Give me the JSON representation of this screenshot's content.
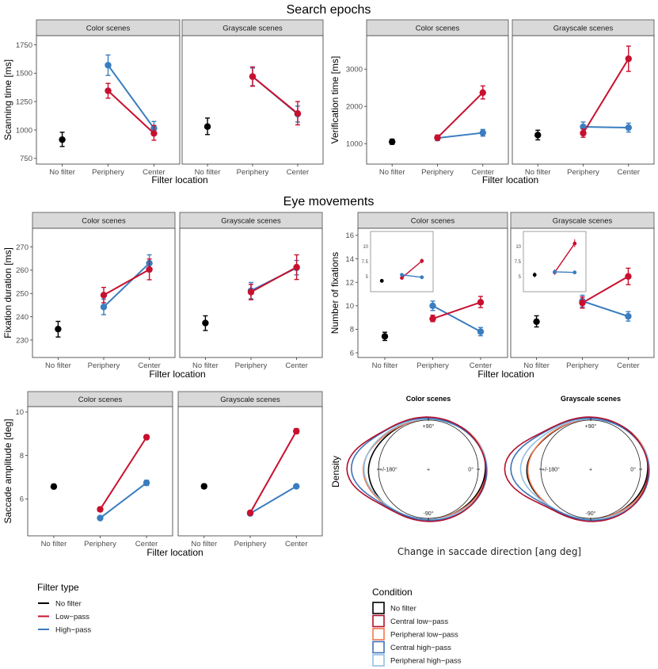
{
  "colors": {
    "no_filter": "#000000",
    "low_pass": "#c8102e",
    "high_pass": "#3a7dbf",
    "central_low_pass": "#b2102e",
    "peripheral_low_pass": "#f07a50",
    "central_high_pass": "#3f72b8",
    "peripheral_high_pass": "#92bfe3",
    "strip_bg": "#d9d9d9"
  },
  "sections": {
    "search_epochs": "Search epochs",
    "eye_movements": "Eye movements"
  },
  "chart_data": [
    {
      "id": "scanning",
      "type": "line",
      "ylabel": "Scanning time [ms]",
      "xlabel": "Filter location",
      "categories": [
        "No filter",
        "Periphery",
        "Center"
      ],
      "yticks": [
        750,
        1000,
        1250,
        1500,
        1750
      ],
      "ylim": [
        700,
        1830
      ],
      "facets": [
        {
          "title": "Color scenes",
          "series": [
            {
              "name": "No filter",
              "key": "no_filter",
              "points": [
                {
                  "x": 0,
                  "y": 915,
                  "lo": 855,
                  "hi": 980
                }
              ]
            },
            {
              "name": "Low-pass",
              "key": "low_pass",
              "points": [
                {
                  "x": 1,
                  "y": 1345,
                  "lo": 1280,
                  "hi": 1410
                },
                {
                  "x": 2,
                  "y": 970,
                  "lo": 910,
                  "hi": 1040
                }
              ]
            },
            {
              "name": "High-pass",
              "key": "high_pass",
              "points": [
                {
                  "x": 1,
                  "y": 1570,
                  "lo": 1480,
                  "hi": 1660
                },
                {
                  "x": 2,
                  "y": 1015,
                  "lo": 960,
                  "hi": 1075
                }
              ]
            }
          ]
        },
        {
          "title": "Grayscale scenes",
          "series": [
            {
              "name": "No filter",
              "key": "no_filter",
              "points": [
                {
                  "x": 0,
                  "y": 1030,
                  "lo": 960,
                  "hi": 1105
                }
              ]
            },
            {
              "name": "Low-pass",
              "key": "low_pass",
              "points": [
                {
                  "x": 1,
                  "y": 1470,
                  "lo": 1385,
                  "hi": 1555
                },
                {
                  "x": 2,
                  "y": 1145,
                  "lo": 1045,
                  "hi": 1250
                }
              ]
            },
            {
              "name": "High-pass",
              "key": "high_pass",
              "points": [
                {
                  "x": 1,
                  "y": 1470,
                  "lo": 1390,
                  "hi": 1545
                },
                {
                  "x": 2,
                  "y": 1140,
                  "lo": 1070,
                  "hi": 1210
                }
              ]
            }
          ]
        }
      ]
    },
    {
      "id": "verification",
      "type": "line",
      "ylabel": "Verification time [ms]",
      "xlabel": "Filter location",
      "categories": [
        "No filter",
        "Periphery",
        "Center"
      ],
      "yticks": [
        1000,
        2000,
        3000
      ],
      "ylim": [
        450,
        3900
      ],
      "facets": [
        {
          "title": "Color scenes",
          "series": [
            {
              "name": "No filter",
              "key": "no_filter",
              "points": [
                {
                  "x": 0,
                  "y": 1050,
                  "lo": 980,
                  "hi": 1120
                }
              ]
            },
            {
              "name": "Low-pass",
              "key": "low_pass",
              "points": [
                {
                  "x": 1,
                  "y": 1160,
                  "lo": 1090,
                  "hi": 1230
                },
                {
                  "x": 2,
                  "y": 2370,
                  "lo": 2200,
                  "hi": 2550
                }
              ]
            },
            {
              "name": "High-pass",
              "key": "high_pass",
              "points": [
                {
                  "x": 1,
                  "y": 1150,
                  "lo": 1080,
                  "hi": 1220
                },
                {
                  "x": 2,
                  "y": 1290,
                  "lo": 1200,
                  "hi": 1380
                }
              ]
            }
          ]
        },
        {
          "title": "Grayscale scenes",
          "series": [
            {
              "name": "No filter",
              "key": "no_filter",
              "points": [
                {
                  "x": 0,
                  "y": 1230,
                  "lo": 1100,
                  "hi": 1360
                }
              ]
            },
            {
              "name": "Low-pass",
              "key": "low_pass",
              "points": [
                {
                  "x": 1,
                  "y": 1280,
                  "lo": 1170,
                  "hi": 1390
                },
                {
                  "x": 2,
                  "y": 3280,
                  "lo": 2940,
                  "hi": 3620
                }
              ]
            },
            {
              "name": "High-pass",
              "key": "high_pass",
              "points": [
                {
                  "x": 1,
                  "y": 1450,
                  "lo": 1330,
                  "hi": 1580
                },
                {
                  "x": 2,
                  "y": 1430,
                  "lo": 1310,
                  "hi": 1550
                }
              ]
            }
          ]
        }
      ]
    },
    {
      "id": "fixation_duration",
      "type": "line",
      "ylabel": "Fixation duration [ms]",
      "xlabel": "Filter location",
      "categories": [
        "No filter",
        "Periphery",
        "Center"
      ],
      "yticks": [
        230,
        240,
        250,
        260,
        270
      ],
      "ylim": [
        222.5,
        278
      ],
      "facets": [
        {
          "title": "Color scenes",
          "series": [
            {
              "name": "No filter",
              "key": "no_filter",
              "points": [
                {
                  "x": 0,
                  "y": 234.7,
                  "lo": 231.3,
                  "hi": 238.0
                }
              ]
            },
            {
              "name": "Low-pass",
              "key": "low_pass",
              "points": [
                {
                  "x": 1,
                  "y": 249.3,
                  "lo": 246.0,
                  "hi": 252.6
                },
                {
                  "x": 2,
                  "y": 260.3,
                  "lo": 255.9,
                  "hi": 264.8
                }
              ]
            },
            {
              "name": "High-pass",
              "key": "high_pass",
              "points": [
                {
                  "x": 1,
                  "y": 244.2,
                  "lo": 240.9,
                  "hi": 247.6
                },
                {
                  "x": 2,
                  "y": 263.0,
                  "lo": 259.9,
                  "hi": 266.6
                }
              ]
            }
          ]
        },
        {
          "title": "Grayscale scenes",
          "series": [
            {
              "name": "No filter",
              "key": "no_filter",
              "points": [
                {
                  "x": 0,
                  "y": 237.3,
                  "lo": 234.1,
                  "hi": 240.4
                }
              ]
            },
            {
              "name": "Low-pass",
              "key": "low_pass",
              "points": [
                {
                  "x": 1,
                  "y": 250.6,
                  "lo": 247.3,
                  "hi": 253.9
                },
                {
                  "x": 2,
                  "y": 261.3,
                  "lo": 256.0,
                  "hi": 266.6
                }
              ]
            },
            {
              "name": "High-pass",
              "key": "high_pass",
              "points": [
                {
                  "x": 1,
                  "y": 251.2,
                  "lo": 247.7,
                  "hi": 254.7
                },
                {
                  "x": 2,
                  "y": 261.0,
                  "lo": 258.0,
                  "hi": 264.2
                }
              ]
            }
          ]
        }
      ]
    },
    {
      "id": "num_fixations",
      "type": "line",
      "ylabel": "Number of fixations",
      "xlabel": "Filter location",
      "categories": [
        "No filter",
        "Periphery",
        "Center"
      ],
      "yticks": [
        6,
        8,
        10,
        12,
        14,
        16
      ],
      "ylim": [
        5.6,
        16.6
      ],
      "facets": [
        {
          "title": "Color scenes",
          "series": [
            {
              "name": "No filter",
              "key": "no_filter",
              "points": [
                {
                  "x": 0,
                  "y": 7.4,
                  "lo": 7.05,
                  "hi": 7.75
                }
              ]
            },
            {
              "name": "Low-pass",
              "key": "low_pass",
              "points": [
                {
                  "x": 1,
                  "y": 8.9,
                  "lo": 8.65,
                  "hi": 9.2
                },
                {
                  "x": 2,
                  "y": 10.3,
                  "lo": 9.85,
                  "hi": 10.8
                }
              ]
            },
            {
              "name": "High-pass",
              "key": "high_pass",
              "points": [
                {
                  "x": 1,
                  "y": 10.0,
                  "lo": 9.6,
                  "hi": 10.4
                },
                {
                  "x": 2,
                  "y": 7.8,
                  "lo": 7.45,
                  "hi": 8.15
                }
              ]
            }
          ],
          "inset": {
            "yticks": [
              5.0,
              7.5,
              10.0
            ],
            "ylim": [
              2.5,
              12.5
            ],
            "series": [
              {
                "key": "no_filter",
                "points": [
                  {
                    "x": 0,
                    "y": 4.3,
                    "lo": 4.0,
                    "hi": 4.6
                  }
                ]
              },
              {
                "key": "low_pass",
                "points": [
                  {
                    "x": 1,
                    "y": 4.8,
                    "lo": 4.5,
                    "hi": 5.1
                  },
                  {
                    "x": 2,
                    "y": 7.6,
                    "lo": 7.2,
                    "hi": 8.0
                  }
                ]
              },
              {
                "key": "high_pass",
                "points": [
                  {
                    "x": 1,
                    "y": 5.3,
                    "lo": 4.9,
                    "hi": 5.6
                  },
                  {
                    "x": 2,
                    "y": 4.9,
                    "lo": 4.6,
                    "hi": 5.2
                  }
                ]
              }
            ]
          }
        },
        {
          "title": "Grayscale scenes",
          "series": [
            {
              "name": "No filter",
              "key": "no_filter",
              "points": [
                {
                  "x": 0,
                  "y": 8.65,
                  "lo": 8.2,
                  "hi": 9.15
                }
              ]
            },
            {
              "name": "Low-pass",
              "key": "low_pass",
              "points": [
                {
                  "x": 1,
                  "y": 10.25,
                  "lo": 9.8,
                  "hi": 10.75
                },
                {
                  "x": 2,
                  "y": 12.5,
                  "lo": 11.8,
                  "hi": 13.2
                }
              ]
            },
            {
              "name": "High-pass",
              "key": "high_pass",
              "points": [
                {
                  "x": 1,
                  "y": 10.4,
                  "lo": 9.9,
                  "hi": 10.9
                },
                {
                  "x": 2,
                  "y": 9.1,
                  "lo": 8.7,
                  "hi": 9.5
                }
              ]
            }
          ],
          "inset": {
            "yticks": [
              5.0,
              7.5,
              10.0
            ],
            "ylim": [
              2.5,
              12.5
            ],
            "series": [
              {
                "key": "no_filter",
                "points": [
                  {
                    "x": 0,
                    "y": 5.3,
                    "lo": 4.9,
                    "hi": 5.7
                  }
                ]
              },
              {
                "key": "low_pass",
                "points": [
                  {
                    "x": 1,
                    "y": 5.7,
                    "lo": 5.3,
                    "hi": 6.1
                  },
                  {
                    "x": 2,
                    "y": 10.5,
                    "lo": 9.9,
                    "hi": 11.2
                  }
                ]
              },
              {
                "key": "high_pass",
                "points": [
                  {
                    "x": 1,
                    "y": 5.8,
                    "lo": 5.4,
                    "hi": 6.2
                  },
                  {
                    "x": 2,
                    "y": 5.7,
                    "lo": 5.4,
                    "hi": 6.0
                  }
                ]
              }
            ]
          }
        }
      ]
    },
    {
      "id": "saccade_amplitude",
      "type": "line",
      "ylabel": "Saccade amplitude [deg]",
      "xlabel": "Filter location",
      "categories": [
        "No filter",
        "Periphery",
        "Center"
      ],
      "yticks": [
        6,
        8,
        10
      ],
      "ylim": [
        4.3,
        10.25
      ],
      "facets": [
        {
          "title": "Color scenes",
          "series": [
            {
              "name": "No filter",
              "key": "no_filter",
              "points": [
                {
                  "x": 0,
                  "y": 6.57,
                  "lo": 6.47,
                  "hi": 6.67
                }
              ]
            },
            {
              "name": "Low-pass",
              "key": "low_pass",
              "points": [
                {
                  "x": 1,
                  "y": 5.52,
                  "lo": 5.42,
                  "hi": 5.62
                },
                {
                  "x": 2,
                  "y": 8.84,
                  "lo": 8.74,
                  "hi": 8.94
                }
              ]
            },
            {
              "name": "High-pass",
              "key": "high_pass",
              "points": [
                {
                  "x": 1,
                  "y": 5.12,
                  "lo": 5.04,
                  "hi": 5.2
                },
                {
                  "x": 2,
                  "y": 6.74,
                  "lo": 6.62,
                  "hi": 6.86
                }
              ]
            }
          ]
        },
        {
          "title": "Grayscale scenes",
          "series": [
            {
              "name": "No filter",
              "key": "no_filter",
              "points": [
                {
                  "x": 0,
                  "y": 6.58,
                  "lo": 6.48,
                  "hi": 6.68
                }
              ]
            },
            {
              "name": "Low-pass",
              "key": "low_pass",
              "points": [
                {
                  "x": 1,
                  "y": 5.36,
                  "lo": 5.26,
                  "hi": 5.46
                },
                {
                  "x": 2,
                  "y": 9.12,
                  "lo": 9.0,
                  "hi": 9.24
                }
              ]
            },
            {
              "name": "High-pass",
              "key": "high_pass",
              "points": [
                {
                  "x": 1,
                  "y": 5.33,
                  "lo": 5.24,
                  "hi": 5.42
                },
                {
                  "x": 2,
                  "y": 6.58,
                  "lo": 6.5,
                  "hi": 6.66
                }
              ]
            }
          ]
        }
      ]
    },
    {
      "id": "saccade_direction",
      "type": "polar-density",
      "ylabel": "Density",
      "xlabel": "Change in saccade direction [ang deg]",
      "angle_labels": {
        "top": "+90°",
        "bottom": "-90°",
        "left": "+/-180°",
        "right": "0°"
      },
      "center_mark": "+",
      "facets": [
        {
          "title": "Color scenes",
          "bulge_at_180": {
            "no_filter": 0.05,
            "central_low_pass": 0.42,
            "peripheral_low_pass": 0.12,
            "central_high_pass": 0.33,
            "peripheral_high_pass": 0.1
          }
        },
        {
          "title": "Grayscale scenes",
          "bulge_at_180": {
            "no_filter": 0.12,
            "central_low_pass": 0.5,
            "peripheral_low_pass": 0.08,
            "central_high_pass": 0.38,
            "peripheral_high_pass": 0.2
          }
        }
      ]
    }
  ],
  "legend_filter_type": {
    "title": "Filter type",
    "items": [
      {
        "label": "No filter",
        "key": "no_filter"
      },
      {
        "label": "Low−pass",
        "key": "low_pass"
      },
      {
        "label": "High−pass",
        "key": "high_pass"
      }
    ]
  },
  "legend_condition": {
    "title": "Condition",
    "items": [
      {
        "label": "No filter",
        "key": "no_filter"
      },
      {
        "label": "Central low−pass",
        "key": "central_low_pass"
      },
      {
        "label": "Peripheral low−pass",
        "key": "peripheral_low_pass"
      },
      {
        "label": "Central high−pass",
        "key": "central_high_pass"
      },
      {
        "label": "Peripheral high−pass",
        "key": "peripheral_high_pass"
      }
    ]
  }
}
